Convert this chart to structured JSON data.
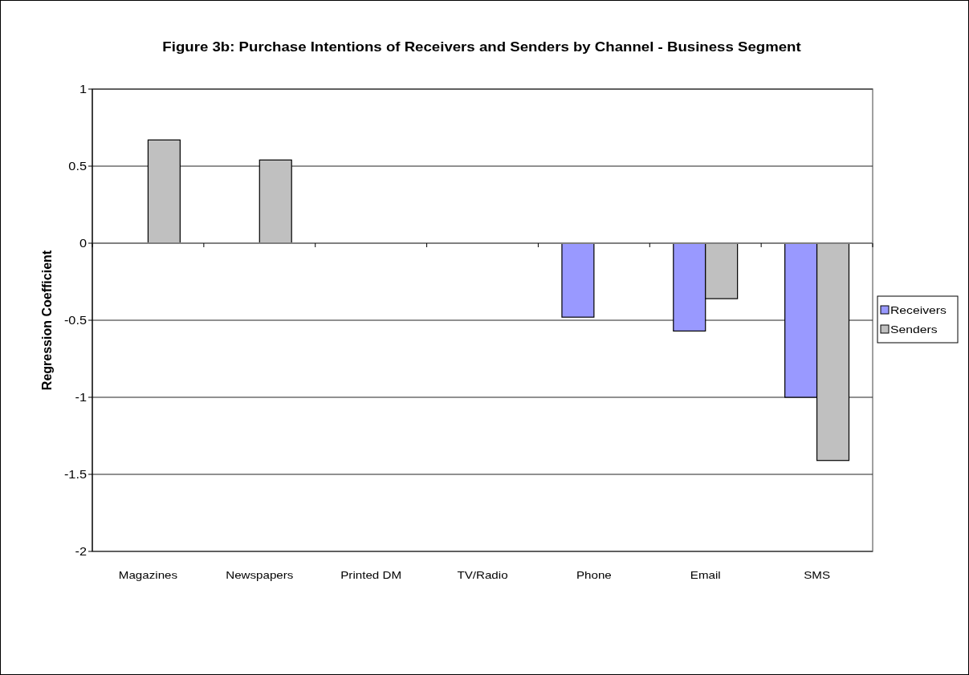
{
  "chart_data": {
    "type": "bar",
    "title": "Figure 3b: Purchase Intentions of Receivers and Senders by Channel - Business Segment",
    "ylabel": "Regression Coefficient",
    "categories": [
      "Magazines",
      "Newspapers",
      "Printed DM",
      "TV/Radio",
      "Phone",
      "Email",
      "SMS"
    ],
    "series": [
      {
        "name": "Receivers",
        "color": "#9999ff",
        "values": [
          null,
          null,
          null,
          null,
          -0.48,
          -0.57,
          -1.0
        ]
      },
      {
        "name": "Senders",
        "color": "#c0c0c0",
        "values": [
          0.67,
          0.54,
          null,
          null,
          null,
          -0.36,
          -1.41
        ]
      }
    ],
    "ylim": [
      -2,
      1
    ],
    "yticks": [
      -2,
      -1.5,
      -1,
      -0.5,
      0,
      0.5,
      1
    ],
    "grid": "y",
    "legend": "right"
  }
}
